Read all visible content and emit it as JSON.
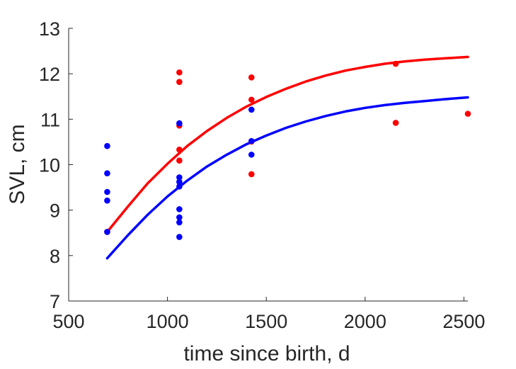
{
  "chart_data": {
    "type": "scatter",
    "xlabel": "time since birth, d",
    "ylabel": "SVL, cm",
    "xlim": [
      500,
      2520
    ],
    "ylim": [
      7,
      13
    ],
    "x_ticks": [
      500,
      1000,
      1500,
      2000,
      2500
    ],
    "y_ticks": [
      7,
      8,
      9,
      10,
      11,
      12,
      13
    ],
    "grid": false,
    "legend": "none",
    "series": [
      {
        "color": "#ff0000",
        "points": [
          {
            "x": 695,
            "y": 8.52
          },
          {
            "x": 1060,
            "y": 12.03
          },
          {
            "x": 1060,
            "y": 11.82
          },
          {
            "x": 1060,
            "y": 10.86
          },
          {
            "x": 1060,
            "y": 10.33
          },
          {
            "x": 1060,
            "y": 10.09
          },
          {
            "x": 1425,
            "y": 11.92
          },
          {
            "x": 1425,
            "y": 11.43
          },
          {
            "x": 1425,
            "y": 10.51
          },
          {
            "x": 1425,
            "y": 9.79
          },
          {
            "x": 2155,
            "y": 12.22
          },
          {
            "x": 2155,
            "y": 10.92
          },
          {
            "x": 2520,
            "y": 11.12
          }
        ],
        "fit": [
          {
            "x": 695,
            "y": 8.52
          },
          {
            "x": 800,
            "y": 9.08
          },
          {
            "x": 900,
            "y": 9.59
          },
          {
            "x": 1000,
            "y": 10.02
          },
          {
            "x": 1100,
            "y": 10.41
          },
          {
            "x": 1200,
            "y": 10.74
          },
          {
            "x": 1300,
            "y": 11.03
          },
          {
            "x": 1400,
            "y": 11.28
          },
          {
            "x": 1500,
            "y": 11.49
          },
          {
            "x": 1600,
            "y": 11.67
          },
          {
            "x": 1700,
            "y": 11.83
          },
          {
            "x": 1800,
            "y": 11.96
          },
          {
            "x": 1900,
            "y": 12.07
          },
          {
            "x": 2000,
            "y": 12.15
          },
          {
            "x": 2100,
            "y": 12.22
          },
          {
            "x": 2200,
            "y": 12.27
          },
          {
            "x": 2300,
            "y": 12.31
          },
          {
            "x": 2400,
            "y": 12.34
          },
          {
            "x": 2520,
            "y": 12.37
          }
        ]
      },
      {
        "color": "#0000ff",
        "points": [
          {
            "x": 695,
            "y": 10.41
          },
          {
            "x": 695,
            "y": 9.81
          },
          {
            "x": 695,
            "y": 9.4
          },
          {
            "x": 695,
            "y": 9.21
          },
          {
            "x": 695,
            "y": 8.52
          },
          {
            "x": 1060,
            "y": 10.91
          },
          {
            "x": 1060,
            "y": 9.72
          },
          {
            "x": 1060,
            "y": 9.62
          },
          {
            "x": 1060,
            "y": 9.52
          },
          {
            "x": 1060,
            "y": 9.02
          },
          {
            "x": 1060,
            "y": 8.84
          },
          {
            "x": 1060,
            "y": 8.73
          },
          {
            "x": 1060,
            "y": 8.41
          },
          {
            "x": 1425,
            "y": 11.21
          },
          {
            "x": 1425,
            "y": 10.52
          },
          {
            "x": 1425,
            "y": 10.22
          }
        ],
        "fit": [
          {
            "x": 695,
            "y": 7.94
          },
          {
            "x": 800,
            "y": 8.45
          },
          {
            "x": 900,
            "y": 8.9
          },
          {
            "x": 1000,
            "y": 9.3
          },
          {
            "x": 1100,
            "y": 9.65
          },
          {
            "x": 1200,
            "y": 9.96
          },
          {
            "x": 1300,
            "y": 10.22
          },
          {
            "x": 1400,
            "y": 10.45
          },
          {
            "x": 1500,
            "y": 10.64
          },
          {
            "x": 1600,
            "y": 10.81
          },
          {
            "x": 1700,
            "y": 10.95
          },
          {
            "x": 1800,
            "y": 11.07
          },
          {
            "x": 1900,
            "y": 11.17
          },
          {
            "x": 2000,
            "y": 11.25
          },
          {
            "x": 2100,
            "y": 11.31
          },
          {
            "x": 2200,
            "y": 11.36
          },
          {
            "x": 2300,
            "y": 11.4
          },
          {
            "x": 2400,
            "y": 11.44
          },
          {
            "x": 2520,
            "y": 11.48
          }
        ]
      }
    ]
  }
}
